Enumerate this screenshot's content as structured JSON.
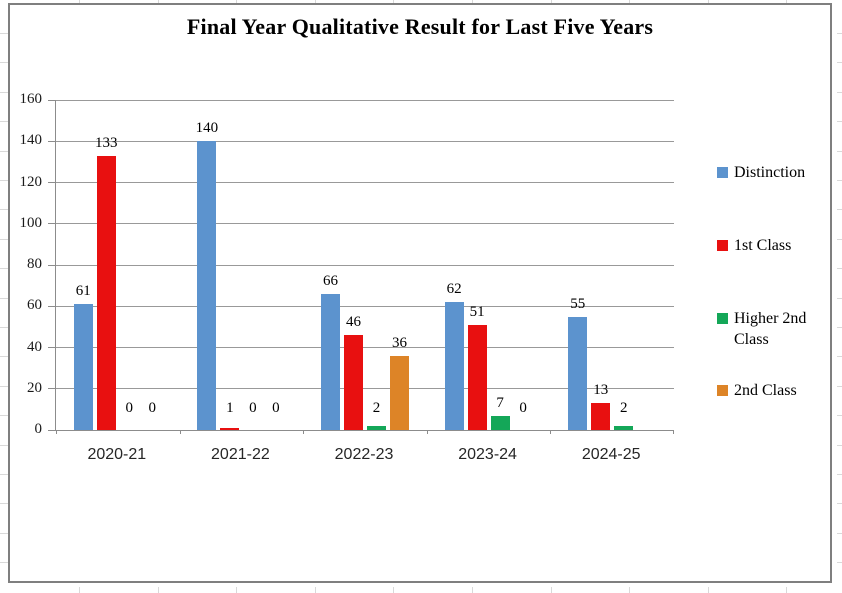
{
  "chart_data": {
    "type": "bar",
    "title": "Final Year Qualitative Result for Last Five Years",
    "categories": [
      "2020-21",
      "2021-22",
      "2022-23",
      "2023-24",
      "2024-25"
    ],
    "series": [
      {
        "name": "Distinction",
        "color": "#5C93CE",
        "values": [
          61,
          140,
          66,
          62,
          55
        ]
      },
      {
        "name": "1st Class",
        "color": "#E81010",
        "values": [
          133,
          1,
          46,
          51,
          13
        ]
      },
      {
        "name": "Higher 2nd Class",
        "color": "#14A758",
        "values": [
          0,
          0,
          2,
          7,
          2
        ]
      },
      {
        "name": "2nd Class",
        "color": "#DD8427",
        "values": [
          0,
          0,
          36,
          0,
          null
        ]
      }
    ],
    "ylim": [
      0,
      160
    ],
    "ytick_step": 20,
    "grid": true,
    "legend_position": "right",
    "value_labels": true
  },
  "frame": {
    "border_color": "#7F7F7F",
    "stub_color": "#D9D9D9"
  },
  "axis": {
    "line_color": "#8C8C8C",
    "grid_color": "#999999",
    "tick_label_color": "#1A1A1A"
  }
}
